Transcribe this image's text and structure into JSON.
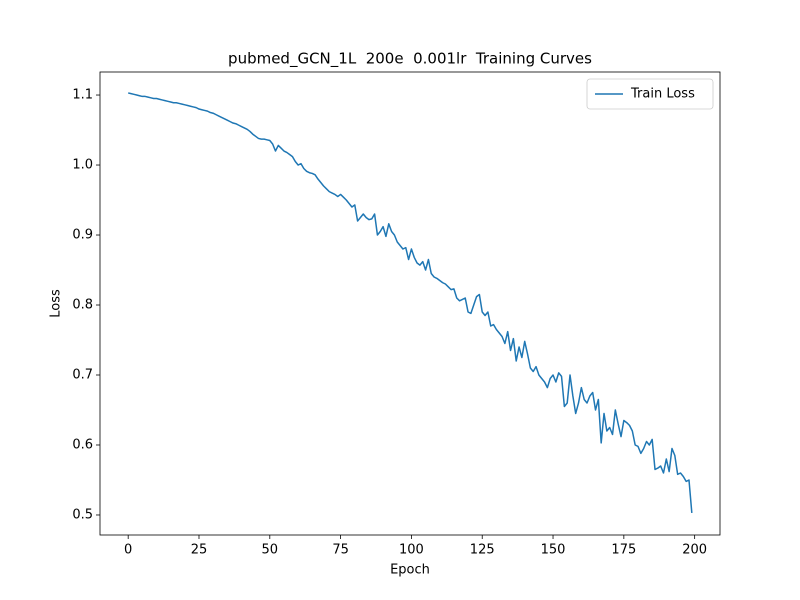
{
  "chart_data": {
    "type": "line",
    "title": "pubmed_GCN_1L  200e  0.001lr  Training Curves",
    "xlabel": "Epoch",
    "ylabel": "Loss",
    "xlim": [
      -9.95,
      208.95
    ],
    "ylim": [
      0.4714,
      1.1329
    ],
    "xticks": [
      0,
      25,
      50,
      75,
      100,
      125,
      150,
      175,
      200
    ],
    "yticks": [
      0.5,
      0.6,
      0.7,
      0.8,
      0.9,
      {
        "value": 1,
        "label": "1.0"
      },
      1.1
    ],
    "legend": "upper right",
    "x": [
      0,
      1,
      2,
      3,
      4,
      5,
      6,
      7,
      8,
      9,
      10,
      11,
      12,
      13,
      14,
      15,
      16,
      17,
      18,
      19,
      20,
      21,
      22,
      23,
      24,
      25,
      26,
      27,
      28,
      29,
      30,
      31,
      32,
      33,
      34,
      35,
      36,
      37,
      38,
      39,
      40,
      41,
      42,
      43,
      44,
      45,
      46,
      47,
      48,
      49,
      50,
      51,
      52,
      53,
      54,
      55,
      56,
      57,
      58,
      59,
      60,
      61,
      62,
      63,
      64,
      65,
      66,
      67,
      68,
      69,
      70,
      71,
      72,
      73,
      74,
      75,
      76,
      77,
      78,
      79,
      80,
      81,
      82,
      83,
      84,
      85,
      86,
      87,
      88,
      89,
      90,
      91,
      92,
      93,
      94,
      95,
      96,
      97,
      98,
      99,
      100,
      101,
      102,
      103,
      104,
      105,
      106,
      107,
      108,
      109,
      110,
      111,
      112,
      113,
      114,
      115,
      116,
      117,
      118,
      119,
      120,
      121,
      122,
      123,
      124,
      125,
      126,
      127,
      128,
      129,
      130,
      131,
      132,
      133,
      134,
      135,
      136,
      137,
      138,
      139,
      140,
      141,
      142,
      143,
      144,
      145,
      146,
      147,
      148,
      149,
      150,
      151,
      152,
      153,
      154,
      155,
      156,
      157,
      158,
      159,
      160,
      161,
      162,
      163,
      164,
      165,
      166,
      167,
      168,
      169,
      170,
      171,
      172,
      173,
      174,
      175,
      176,
      177,
      178,
      179,
      180,
      181,
      182,
      183,
      184,
      185,
      186,
      187,
      188,
      189,
      190,
      191,
      192,
      193,
      194,
      195,
      196,
      197,
      198,
      199
    ],
    "series": [
      {
        "name": "Train Loss",
        "color": "#1f77b4",
        "values": [
          1.103,
          1.102,
          1.101,
          1.1,
          1.099,
          1.098,
          1.098,
          1.097,
          1.096,
          1.095,
          1.095,
          1.094,
          1.093,
          1.092,
          1.091,
          1.09,
          1.089,
          1.089,
          1.088,
          1.087,
          1.086,
          1.085,
          1.084,
          1.083,
          1.082,
          1.08,
          1.079,
          1.078,
          1.077,
          1.075,
          1.074,
          1.072,
          1.07,
          1.068,
          1.066,
          1.064,
          1.062,
          1.06,
          1.059,
          1.057,
          1.055,
          1.053,
          1.051,
          1.048,
          1.044,
          1.041,
          1.038,
          1.037,
          1.037,
          1.036,
          1.035,
          1.03,
          1.02,
          1.028,
          1.024,
          1.02,
          1.018,
          1.015,
          1.012,
          1.005,
          1.0,
          1.002,
          0.995,
          0.991,
          0.989,
          0.988,
          0.986,
          0.98,
          0.975,
          0.97,
          0.966,
          0.962,
          0.96,
          0.958,
          0.955,
          0.958,
          0.954,
          0.95,
          0.945,
          0.94,
          0.943,
          0.92,
          0.925,
          0.93,
          0.925,
          0.922,
          0.923,
          0.93,
          0.9,
          0.905,
          0.912,
          0.898,
          0.916,
          0.905,
          0.9,
          0.89,
          0.885,
          0.88,
          0.882,
          0.865,
          0.88,
          0.868,
          0.86,
          0.857,
          0.862,
          0.85,
          0.865,
          0.845,
          0.84,
          0.838,
          0.835,
          0.832,
          0.83,
          0.826,
          0.822,
          0.823,
          0.81,
          0.806,
          0.808,
          0.81,
          0.79,
          0.788,
          0.8,
          0.812,
          0.815,
          0.79,
          0.785,
          0.79,
          0.77,
          0.772,
          0.765,
          0.76,
          0.755,
          0.745,
          0.762,
          0.735,
          0.752,
          0.72,
          0.74,
          0.725,
          0.748,
          0.73,
          0.71,
          0.705,
          0.712,
          0.7,
          0.695,
          0.69,
          0.682,
          0.695,
          0.7,
          0.69,
          0.703,
          0.698,
          0.655,
          0.66,
          0.7,
          0.67,
          0.645,
          0.66,
          0.682,
          0.665,
          0.66,
          0.67,
          0.675,
          0.65,
          0.665,
          0.603,
          0.645,
          0.62,
          0.625,
          0.615,
          0.65,
          0.63,
          0.612,
          0.635,
          0.632,
          0.628,
          0.62,
          0.6,
          0.598,
          0.588,
          0.595,
          0.605,
          0.6,
          0.608,
          0.565,
          0.567,
          0.57,
          0.56,
          0.58,
          0.562,
          0.595,
          0.585,
          0.558,
          0.56,
          0.555,
          0.548,
          0.55,
          0.503
        ]
      }
    ]
  }
}
